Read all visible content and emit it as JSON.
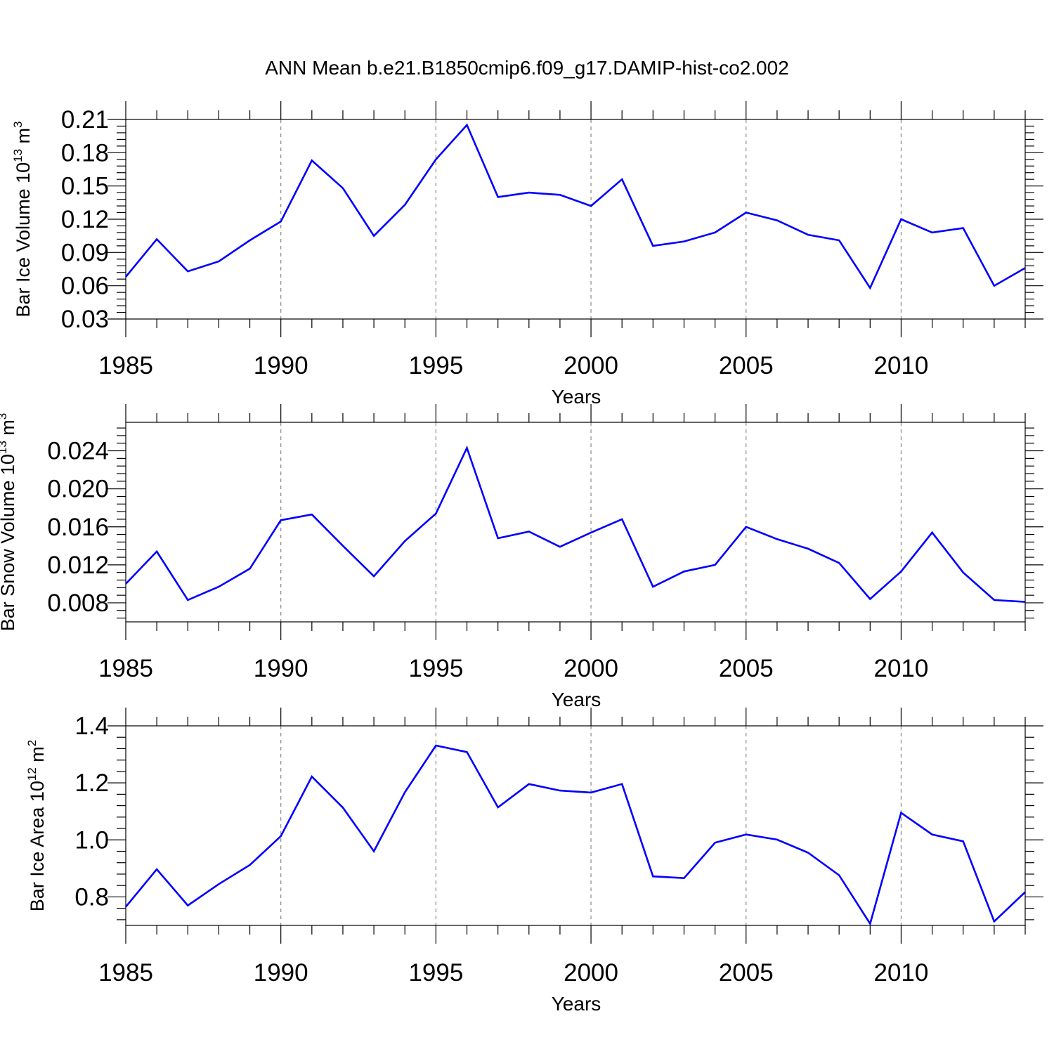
{
  "figure_title": "ANN Mean b.e21.B1850cmip6.f09_g17.DAMIP-hist-co2.002",
  "colors": {
    "line": "#0000ff",
    "axis": "#000000",
    "grid": "#888888"
  },
  "chart_data": [
    {
      "type": "line",
      "title": "",
      "ylabel": {
        "base": "Bar Ice Volume 10",
        "exp": "13",
        "unit": " m",
        "unit_exp": "3"
      },
      "xlabel": "Years",
      "xlim": [
        1985,
        2014
      ],
      "ylim": [
        0.03,
        0.21
      ],
      "x_ticks": [
        1985,
        1990,
        1995,
        2000,
        2005,
        2010
      ],
      "x_tick_labels": [
        "1985",
        "1990",
        "1995",
        "2000",
        "2005",
        "2010"
      ],
      "x_minor_step": 1,
      "y_ticks": [
        0.03,
        0.06,
        0.09,
        0.12,
        0.15,
        0.18,
        0.21
      ],
      "y_tick_labels": [
        "0.03",
        "0.06",
        "0.09",
        "0.12",
        "0.15",
        "0.18",
        "0.21"
      ],
      "y_minor_step": 0.006,
      "grid_x": true,
      "series": [
        {
          "name": "Bar Ice Volume",
          "x": [
            1985,
            1986,
            1987,
            1988,
            1989,
            1990,
            1991,
            1992,
            1993,
            1994,
            1995,
            1996,
            1997,
            1998,
            1999,
            2000,
            2001,
            2002,
            2003,
            2004,
            2005,
            2006,
            2007,
            2008,
            2009,
            2010,
            2011,
            2012,
            2013,
            2014
          ],
          "values": [
            0.068,
            0.102,
            0.073,
            0.082,
            0.101,
            0.118,
            0.173,
            0.148,
            0.105,
            0.133,
            0.174,
            0.205,
            0.14,
            0.144,
            0.142,
            0.132,
            0.156,
            0.096,
            0.1,
            0.108,
            0.126,
            0.119,
            0.106,
            0.101,
            0.058,
            0.12,
            0.108,
            0.112,
            0.06,
            0.076
          ]
        }
      ]
    },
    {
      "type": "line",
      "title": "",
      "ylabel": {
        "base": "Bar Snow Volume 10",
        "exp": "13",
        "unit": " m",
        "unit_exp": "3"
      },
      "xlabel": "Years",
      "xlim": [
        1985,
        2014
      ],
      "ylim": [
        0.006,
        0.027
      ],
      "x_ticks": [
        1985,
        1990,
        1995,
        2000,
        2005,
        2010
      ],
      "x_tick_labels": [
        "1985",
        "1990",
        "1995",
        "2000",
        "2005",
        "2010"
      ],
      "x_minor_step": 1,
      "y_ticks": [
        0.008,
        0.012,
        0.016,
        0.02,
        0.024
      ],
      "y_tick_labels": [
        "0.008",
        "0.012",
        "0.016",
        "0.020",
        "0.024"
      ],
      "y_minor_step": 0.0008,
      "grid_x": true,
      "series": [
        {
          "name": "Bar Snow Volume",
          "x": [
            1985,
            1986,
            1987,
            1988,
            1989,
            1990,
            1991,
            1992,
            1993,
            1994,
            1995,
            1996,
            1997,
            1998,
            1999,
            2000,
            2001,
            2002,
            2003,
            2004,
            2005,
            2006,
            2007,
            2008,
            2009,
            2010,
            2011,
            2012,
            2013,
            2014
          ],
          "values": [
            0.01,
            0.0134,
            0.0083,
            0.0097,
            0.0116,
            0.0167,
            0.0173,
            0.014,
            0.0108,
            0.0145,
            0.0174,
            0.0243,
            0.0148,
            0.0155,
            0.0139,
            0.0154,
            0.0168,
            0.0097,
            0.0113,
            0.012,
            0.016,
            0.0147,
            0.0137,
            0.0122,
            0.0084,
            0.0113,
            0.0154,
            0.0112,
            0.0083,
            0.0081
          ]
        }
      ]
    },
    {
      "type": "line",
      "title": "",
      "ylabel": {
        "base": "Bar Ice Area 10",
        "exp": "12",
        "unit": " m",
        "unit_exp": "2"
      },
      "xlabel": "Years",
      "xlim": [
        1985,
        2014
      ],
      "ylim": [
        0.7,
        1.4
      ],
      "x_ticks": [
        1985,
        1990,
        1995,
        2000,
        2005,
        2010
      ],
      "x_tick_labels": [
        "1985",
        "1990",
        "1995",
        "2000",
        "2005",
        "2010"
      ],
      "x_minor_step": 1,
      "y_ticks": [
        0.8,
        1.0,
        1.2,
        1.4
      ],
      "y_tick_labels": [
        "0.8",
        "1.0",
        "1.2",
        "1.4"
      ],
      "y_minor_step": 0.04,
      "grid_x": true,
      "series": [
        {
          "name": "Bar Ice Area",
          "x": [
            1985,
            1986,
            1987,
            1988,
            1989,
            1990,
            1991,
            1992,
            1993,
            1994,
            1995,
            1996,
            1997,
            1998,
            1999,
            2000,
            2001,
            2002,
            2003,
            2004,
            2005,
            2006,
            2007,
            2008,
            2009,
            2010,
            2011,
            2012,
            2013,
            2014
          ],
          "values": [
            0.765,
            0.897,
            0.77,
            0.845,
            0.912,
            1.013,
            1.222,
            1.113,
            0.96,
            1.167,
            1.331,
            1.308,
            1.114,
            1.196,
            1.173,
            1.166,
            1.196,
            0.872,
            0.866,
            0.99,
            1.019,
            1.001,
            0.955,
            0.876,
            0.706,
            1.095,
            1.019,
            0.995,
            0.714,
            0.817
          ]
        }
      ]
    }
  ]
}
